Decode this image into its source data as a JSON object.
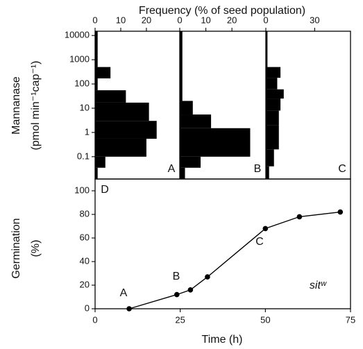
{
  "chart_data": [
    {
      "type": "histogram",
      "orientation": "horizontal",
      "label": "A",
      "xlabel": "Frequency  (% of seed population)",
      "ylabel": [
        "Mannanase",
        "(pmol min⁻¹cap⁻¹)"
      ],
      "bins": [
        0.012,
        0.035,
        0.1,
        0.55,
        3,
        17,
        55,
        170,
        500,
        1500,
        15000
      ],
      "counts": [
        1,
        4,
        20,
        24,
        21,
        12,
        1,
        6,
        1,
        1
      ],
      "color": "#000000",
      "xlim": [
        0,
        33
      ],
      "xticks": [
        0,
        10,
        20
      ],
      "log_y": true,
      "ylim": [
        0.012,
        15000
      ],
      "yticks": [
        0.1,
        1,
        10,
        100,
        1000,
        10000
      ]
    },
    {
      "type": "histogram",
      "orientation": "horizontal",
      "label": "B",
      "bins": [
        0.012,
        0.035,
        0.1,
        1.5,
        5.5,
        20,
        15000
      ],
      "counts": [
        2,
        8,
        27,
        12,
        5,
        1
      ],
      "color": "#000000",
      "xlim": [
        0,
        33
      ],
      "xticks": [
        0,
        10,
        20
      ],
      "log_y": true,
      "ylim": [
        0.012,
        15000
      ]
    },
    {
      "type": "histogram",
      "orientation": "horizontal",
      "label": "C",
      "bins": [
        0.012,
        0.04,
        0.2,
        2,
        8,
        25,
        60,
        180,
        500,
        15000
      ],
      "counts": [
        2,
        5,
        8,
        8,
        9,
        11,
        7,
        9,
        1
      ],
      "color": "#000000",
      "xlim": [
        0,
        52
      ],
      "xticks": [
        0,
        30
      ],
      "log_y": true,
      "ylim": [
        0.012,
        15000
      ]
    },
    {
      "type": "line",
      "label": "D",
      "xlabel": "Time  (h)",
      "ylabel": [
        "Germination",
        "(%)"
      ],
      "x": [
        10,
        24,
        28,
        33,
        50,
        60,
        72
      ],
      "values": [
        0,
        12,
        16,
        27,
        68,
        78,
        82
      ],
      "color": "#000000",
      "xlim": [
        0,
        75
      ],
      "xticks": [
        0,
        25,
        50,
        75
      ],
      "ylim": [
        0,
        110
      ],
      "yticks": [
        0,
        20,
        40,
        60,
        80,
        100
      ],
      "annotations": [
        "A",
        "B",
        "C",
        "sitʷ"
      ]
    }
  ]
}
